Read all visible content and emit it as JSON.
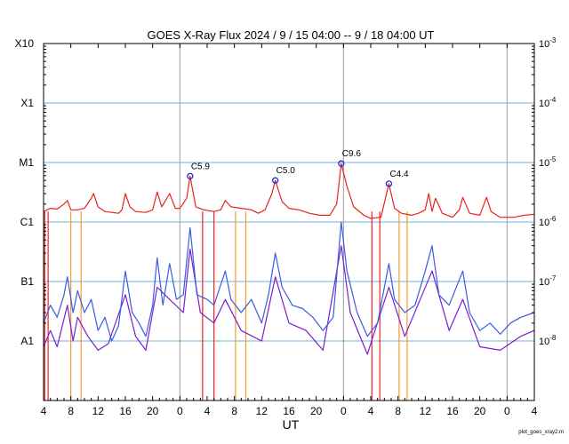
{
  "chart_data": {
    "type": "line",
    "title": "GOES X-Ray Flux   2024  /  9  /  15   04:00 --  9  /  18   04:00   UT",
    "xlabel": "UT",
    "x_range": [
      "2024-09-15 04:00",
      "2024-09-18 04:00"
    ],
    "x_tick_labels": [
      "4",
      "8",
      "12",
      "16",
      "20",
      "0",
      "4",
      "8",
      "12",
      "16",
      "20",
      "0",
      "4",
      "8",
      "12",
      "16",
      "20",
      "0",
      "4"
    ],
    "y_scale": "log",
    "y_range_w_m2": [
      1e-09,
      0.001
    ],
    "left_class_labels": [
      {
        "label": "X10",
        "flux": 0.001
      },
      {
        "label": "X1",
        "flux": 0.0001
      },
      {
        "label": "M1",
        "flux": 1e-05
      },
      {
        "label": "C1",
        "flux": 1e-06
      },
      {
        "label": "B1",
        "flux": 1e-07
      },
      {
        "label": "A1",
        "flux": 1e-08
      }
    ],
    "right_labels": [
      {
        "base": "10",
        "exp": "-3",
        "flux": 0.001
      },
      {
        "base": "10",
        "exp": "-4",
        "flux": 0.0001
      },
      {
        "base": "10",
        "exp": "-5",
        "flux": 1e-05
      },
      {
        "base": "10",
        "exp": "-6",
        "flux": 1e-06
      },
      {
        "base": "10",
        "exp": "-7",
        "flux": 1e-07
      },
      {
        "base": "10",
        "exp": "-8",
        "flux": 1e-08
      }
    ],
    "grid": true,
    "day_boundaries": [
      "2024-09-16 00:00",
      "2024-09-17 00:00",
      "2024-09-18 00:00"
    ],
    "flare_annotations": [
      {
        "label": "C5.9",
        "time": "2024-09-16 01:30",
        "flux": 5.9e-06
      },
      {
        "label": "C5.0",
        "time": "2024-09-16 14:00",
        "flux": 5e-06
      },
      {
        "label": "C9.6",
        "time": "2024-09-16 23:40",
        "flux": 9.6e-06
      },
      {
        "label": "C4.4",
        "time": "2024-09-17 06:40",
        "flux": 4.4e-06
      }
    ],
    "series": [
      {
        "color": "#e8231f",
        "points": [
          [
            "2024-09-15 04:00",
            1.5e-06
          ],
          [
            "2024-09-15 05:00",
            1.7e-06
          ],
          [
            "2024-09-15 06:00",
            1.65e-06
          ],
          [
            "2024-09-15 07:00",
            2e-06
          ],
          [
            "2024-09-15 07:30",
            2.3e-06
          ],
          [
            "2024-09-15 08:00",
            1.6e-06
          ],
          [
            "2024-09-15 09:00",
            1.6e-06
          ],
          [
            "2024-09-15 10:00",
            1.7e-06
          ],
          [
            "2024-09-15 11:00",
            2.5e-06
          ],
          [
            "2024-09-15 11:20",
            3e-06
          ],
          [
            "2024-09-15 12:00",
            1.8e-06
          ],
          [
            "2024-09-15 13:00",
            1.5e-06
          ],
          [
            "2024-09-15 14:00",
            1.45e-06
          ],
          [
            "2024-09-15 15:00",
            1.4e-06
          ],
          [
            "2024-09-15 15:30",
            1.6e-06
          ],
          [
            "2024-09-15 16:00",
            3e-06
          ],
          [
            "2024-09-15 16:40",
            1.8e-06
          ],
          [
            "2024-09-15 17:30",
            1.5e-06
          ],
          [
            "2024-09-15 19:00",
            1.45e-06
          ],
          [
            "2024-09-15 20:00",
            1.6e-06
          ],
          [
            "2024-09-15 20:40",
            3.2e-06
          ],
          [
            "2024-09-15 21:20",
            1.8e-06
          ],
          [
            "2024-09-15 22:30",
            3e-06
          ],
          [
            "2024-09-15 23:20",
            1.7e-06
          ],
          [
            "2024-09-16 00:00",
            1.7e-06
          ],
          [
            "2024-09-16 01:00",
            2.5e-06
          ],
          [
            "2024-09-16 01:30",
            5.9e-06
          ],
          [
            "2024-09-16 02:20",
            1.8e-06
          ],
          [
            "2024-09-16 03:30",
            1.6e-06
          ],
          [
            "2024-09-16 05:00",
            1.5e-06
          ],
          [
            "2024-09-16 06:00",
            1.6e-06
          ],
          [
            "2024-09-16 06:40",
            2.3e-06
          ],
          [
            "2024-09-16 07:30",
            1.8e-06
          ],
          [
            "2024-09-16 09:00",
            1.7e-06
          ],
          [
            "2024-09-16 10:30",
            1.6e-06
          ],
          [
            "2024-09-16 11:30",
            1.4e-06
          ],
          [
            "2024-09-16 12:30",
            1.6e-06
          ],
          [
            "2024-09-16 13:30",
            3e-06
          ],
          [
            "2024-09-16 14:00",
            5e-06
          ],
          [
            "2024-09-16 15:00",
            2.2e-06
          ],
          [
            "2024-09-16 16:00",
            1.7e-06
          ],
          [
            "2024-09-16 17:30",
            1.6e-06
          ],
          [
            "2024-09-16 19:00",
            1.4e-06
          ],
          [
            "2024-09-16 20:30",
            1.3e-06
          ],
          [
            "2024-09-16 22:00",
            1.3e-06
          ],
          [
            "2024-09-16 23:00",
            2e-06
          ],
          [
            "2024-09-16 23:40",
            9.6e-06
          ],
          [
            "2024-09-17 00:30",
            4e-06
          ],
          [
            "2024-09-17 01:30",
            1.8e-06
          ],
          [
            "2024-09-17 03:00",
            1.3e-06
          ],
          [
            "2024-09-17 04:00",
            1.15e-06
          ],
          [
            "2024-09-17 05:30",
            1.2e-06
          ],
          [
            "2024-09-17 06:40",
            4.4e-06
          ],
          [
            "2024-09-17 07:30",
            1.7e-06
          ],
          [
            "2024-09-17 08:30",
            1.4e-06
          ],
          [
            "2024-09-17 10:00",
            1.3e-06
          ],
          [
            "2024-09-17 11:00",
            1.4e-06
          ],
          [
            "2024-09-17 12:00",
            1.6e-06
          ],
          [
            "2024-09-17 12:30",
            3e-06
          ],
          [
            "2024-09-17 13:00",
            1.5e-06
          ],
          [
            "2024-09-17 13:30",
            2.5e-06
          ],
          [
            "2024-09-17 14:30",
            1.4e-06
          ],
          [
            "2024-09-17 16:00",
            1.2e-06
          ],
          [
            "2024-09-17 17:00",
            1.6e-06
          ],
          [
            "2024-09-17 17:30",
            2.6e-06
          ],
          [
            "2024-09-17 18:30",
            1.4e-06
          ],
          [
            "2024-09-17 20:00",
            1.3e-06
          ],
          [
            "2024-09-17 21:00",
            2.6e-06
          ],
          [
            "2024-09-17 21:40",
            1.5e-06
          ],
          [
            "2024-09-17 23:00",
            1.2e-06
          ],
          [
            "2024-09-18 01:00",
            1.2e-06
          ],
          [
            "2024-09-18 02:30",
            1.3e-06
          ],
          [
            "2024-09-18 04:00",
            1.35e-06
          ]
        ]
      },
      {
        "color": "#3a5ce0",
        "points": [
          [
            "2024-09-15 04:00",
            2e-08
          ],
          [
            "2024-09-15 05:00",
            4e-08
          ],
          [
            "2024-09-15 06:00",
            2.5e-08
          ],
          [
            "2024-09-15 07:00",
            6e-08
          ],
          [
            "2024-09-15 07:30",
            1.2e-07
          ],
          [
            "2024-09-15 08:20",
            3e-08
          ],
          [
            "2024-09-15 09:00",
            7e-08
          ],
          [
            "2024-09-15 10:00",
            3e-08
          ],
          [
            "2024-09-15 11:00",
            5e-08
          ],
          [
            "2024-09-15 12:00",
            1.5e-08
          ],
          [
            "2024-09-15 13:00",
            2.5e-08
          ],
          [
            "2024-09-15 14:00",
            1e-08
          ],
          [
            "2024-09-15 15:00",
            1.8e-08
          ],
          [
            "2024-09-15 16:00",
            1.5e-07
          ],
          [
            "2024-09-15 17:00",
            3e-08
          ],
          [
            "2024-09-15 18:00",
            2e-08
          ],
          [
            "2024-09-15 19:00",
            1.2e-08
          ],
          [
            "2024-09-15 20:00",
            4e-08
          ],
          [
            "2024-09-15 20:40",
            2.5e-07
          ],
          [
            "2024-09-15 21:30",
            4e-08
          ],
          [
            "2024-09-15 22:30",
            2e-07
          ],
          [
            "2024-09-15 23:30",
            5e-08
          ],
          [
            "2024-09-16 00:30",
            6e-08
          ],
          [
            "2024-09-16 01:30",
            8e-07
          ],
          [
            "2024-09-16 02:30",
            6e-08
          ],
          [
            "2024-09-16 04:00",
            5e-08
          ],
          [
            "2024-09-16 05:00",
            4e-08
          ],
          [
            "2024-09-16 06:40",
            1.5e-07
          ],
          [
            "2024-09-16 07:30",
            5e-08
          ],
          [
            "2024-09-16 09:00",
            3e-08
          ],
          [
            "2024-09-16 10:30",
            5e-08
          ],
          [
            "2024-09-16 12:00",
            2e-08
          ],
          [
            "2024-09-16 13:00",
            6e-08
          ],
          [
            "2024-09-16 14:00",
            3e-07
          ],
          [
            "2024-09-16 15:00",
            8e-08
          ],
          [
            "2024-09-16 16:30",
            4e-08
          ],
          [
            "2024-09-16 18:00",
            3.5e-08
          ],
          [
            "2024-09-16 19:30",
            2.5e-08
          ],
          [
            "2024-09-16 21:00",
            1.5e-08
          ],
          [
            "2024-09-16 22:30",
            2.5e-08
          ],
          [
            "2024-09-16 23:40",
            1e-06
          ],
          [
            "2024-09-17 00:30",
            1.5e-07
          ],
          [
            "2024-09-17 02:00",
            3e-08
          ],
          [
            "2024-09-17 03:30",
            1.2e-08
          ],
          [
            "2024-09-17 05:00",
            2e-08
          ],
          [
            "2024-09-17 06:40",
            2e-07
          ],
          [
            "2024-09-17 07:30",
            5e-08
          ],
          [
            "2024-09-17 09:00",
            3e-08
          ],
          [
            "2024-09-17 10:30",
            4e-08
          ],
          [
            "2024-09-17 12:00",
            1.5e-07
          ],
          [
            "2024-09-17 13:00",
            4e-07
          ],
          [
            "2024-09-17 14:00",
            6e-08
          ],
          [
            "2024-09-17 15:30",
            4e-08
          ],
          [
            "2024-09-17 17:30",
            1.5e-07
          ],
          [
            "2024-09-17 18:30",
            3e-08
          ],
          [
            "2024-09-17 20:00",
            1.5e-08
          ],
          [
            "2024-09-17 21:30",
            2e-08
          ],
          [
            "2024-09-17 23:00",
            1.3e-08
          ],
          [
            "2024-09-18 00:30",
            2e-08
          ],
          [
            "2024-09-18 02:00",
            2.5e-08
          ],
          [
            "2024-09-18 04:00",
            3e-08
          ]
        ]
      },
      {
        "color": "#7a1fcf",
        "points": [
          [
            "2024-09-15 04:00",
            8e-09
          ],
          [
            "2024-09-15 05:00",
            1.5e-08
          ],
          [
            "2024-09-15 06:00",
            8e-09
          ],
          [
            "2024-09-15 07:30",
            4e-08
          ],
          [
            "2024-09-15 08:20",
            1e-08
          ],
          [
            "2024-09-15 09:00",
            2.5e-08
          ],
          [
            "2024-09-15 10:30",
            1.2e-08
          ],
          [
            "2024-09-15 12:00",
            7e-09
          ],
          [
            "2024-09-15 13:30",
            9e-09
          ],
          [
            "2024-09-15 16:00",
            6e-08
          ],
          [
            "2024-09-15 17:30",
            1.2e-08
          ],
          [
            "2024-09-15 19:00",
            7e-09
          ],
          [
            "2024-09-15 20:40",
            8e-08
          ],
          [
            "2024-09-15 22:30",
            5e-08
          ],
          [
            "2024-09-16 00:30",
            3e-08
          ],
          [
            "2024-09-16 01:30",
            3.5e-07
          ],
          [
            "2024-09-16 03:00",
            3e-08
          ],
          [
            "2024-09-16 05:00",
            2e-08
          ],
          [
            "2024-09-16 06:40",
            5e-08
          ],
          [
            "2024-09-16 09:00",
            1.5e-08
          ],
          [
            "2024-09-16 12:00",
            1e-08
          ],
          [
            "2024-09-16 14:00",
            1.2e-07
          ],
          [
            "2024-09-16 16:00",
            2e-08
          ],
          [
            "2024-09-16 18:30",
            1.5e-08
          ],
          [
            "2024-09-16 21:00",
            7e-09
          ],
          [
            "2024-09-16 23:40",
            4e-07
          ],
          [
            "2024-09-17 01:00",
            3e-08
          ],
          [
            "2024-09-17 03:30",
            6e-09
          ],
          [
            "2024-09-17 06:40",
            8e-08
          ],
          [
            "2024-09-17 09:00",
            1.2e-08
          ],
          [
            "2024-09-17 13:00",
            1.5e-07
          ],
          [
            "2024-09-17 15:30",
            1.5e-08
          ],
          [
            "2024-09-17 17:30",
            5e-08
          ],
          [
            "2024-09-17 20:00",
            8e-09
          ],
          [
            "2024-09-17 23:00",
            7e-09
          ],
          [
            "2024-09-18 02:00",
            1.2e-08
          ],
          [
            "2024-09-18 04:00",
            1.5e-08
          ]
        ]
      }
    ],
    "dropouts": [
      {
        "time": "2024-09-15 04:10",
        "color": "#e8231f"
      },
      {
        "time": "2024-09-15 04:40",
        "color": "#e8231f"
      },
      {
        "time": "2024-09-15 08:00",
        "color": "#f39a2b"
      },
      {
        "time": "2024-09-15 09:30",
        "color": "#f39a2b"
      },
      {
        "time": "2024-09-16 03:20",
        "color": "#e8231f"
      },
      {
        "time": "2024-09-16 05:00",
        "color": "#e8231f"
      },
      {
        "time": "2024-09-16 08:10",
        "color": "#f39a2b"
      },
      {
        "time": "2024-09-16 09:40",
        "color": "#f39a2b"
      },
      {
        "time": "2024-09-17 04:10",
        "color": "#e8231f"
      },
      {
        "time": "2024-09-17 05:20",
        "color": "#e8231f"
      },
      {
        "time": "2024-09-17 08:10",
        "color": "#f39a2b"
      },
      {
        "time": "2024-09-17 09:20",
        "color": "#f39a2b"
      }
    ]
  },
  "footer": {
    "credit": "plot_goes_xray2.m"
  },
  "colors": {
    "grid": "#6fb3e0",
    "day_line": "#9a9a9a",
    "annotation_marker": "#1a2fd0"
  }
}
